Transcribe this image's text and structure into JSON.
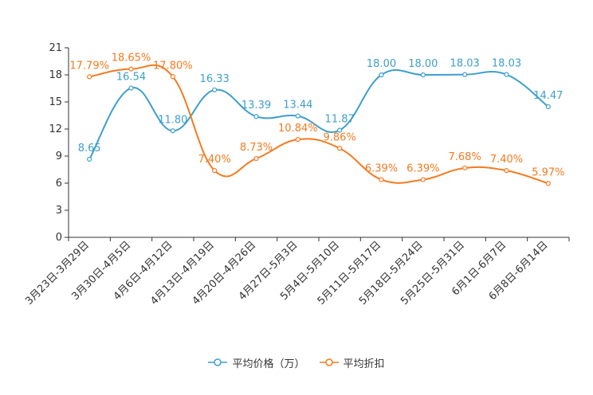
{
  "chart_data": {
    "type": "line",
    "title": "",
    "xlabel": "",
    "ylabel": "",
    "ylim": [
      0,
      21
    ],
    "yticks": [
      0,
      3,
      6,
      9,
      12,
      15,
      18,
      21
    ],
    "grid": false,
    "legend_position": "bottom",
    "categories": [
      "3月23日-3月29日",
      "3月30日-4月5日",
      "4月6日-4月12日",
      "4月13日-4月19日",
      "4月20日-4月26日",
      "4月27日-5月3日",
      "5月4日-5月10日",
      "5月11日-5月17日",
      "5月18日-5月24日",
      "5月25日-5月31日",
      "6月1日-6月7日",
      "6月8日-6月14日"
    ],
    "series": [
      {
        "name": "平均价格（万）",
        "color": "#3d9fcc",
        "values": [
          8.65,
          16.54,
          11.8,
          16.33,
          13.39,
          13.44,
          11.87,
          18.0,
          18.0,
          18.03,
          18.03,
          14.47
        ],
        "labels": [
          "8.65",
          "16.54",
          "11.80",
          "16.33",
          "13.39",
          "13.44",
          "11.87",
          "18.00",
          "18.00",
          "18.03",
          "18.03",
          "14.47"
        ]
      },
      {
        "name": "平均折扣",
        "color": "#f57a1f",
        "values": [
          17.79,
          18.65,
          17.8,
          7.4,
          8.73,
          10.84,
          9.86,
          6.39,
          6.39,
          7.68,
          7.4,
          5.97
        ],
        "labels": [
          "17.79%",
          "18.65%",
          "17.80%",
          "7.40%",
          "8.73%",
          "10.84%",
          "9.86%",
          "6.39%",
          "6.39%",
          "7.68%",
          "7.40%",
          "5.97%"
        ]
      }
    ]
  }
}
